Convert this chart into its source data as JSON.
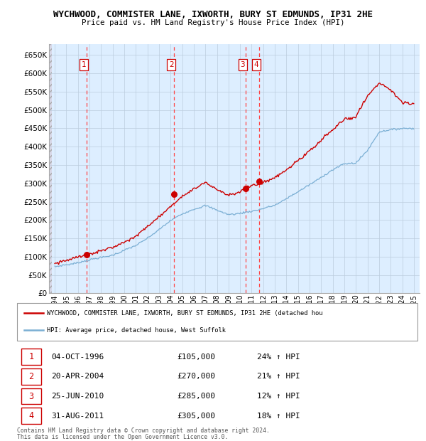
{
  "title1": "WYCHWOOD, COMMISTER LANE, IXWORTH, BURY ST EDMUNDS, IP31 2HE",
  "title2": "Price paid vs. HM Land Registry's House Price Index (HPI)",
  "legend_line1": "WYCHWOOD, COMMISTER LANE, IXWORTH, BURY ST EDMUNDS, IP31 2HE (detached hou",
  "legend_line2": "HPI: Average price, detached house, West Suffolk",
  "footer1": "Contains HM Land Registry data © Crown copyright and database right 2024.",
  "footer2": "This data is licensed under the Open Government Licence v3.0.",
  "transactions": [
    {
      "id": 1,
      "date": "04-OCT-1996",
      "year": 1996.75,
      "price": 105000,
      "pct": "24%",
      "dir": "↑"
    },
    {
      "id": 2,
      "date": "20-APR-2004",
      "year": 2004.3,
      "price": 270000,
      "pct": "21%",
      "dir": "↑"
    },
    {
      "id": 3,
      "date": "25-JUN-2010",
      "year": 2010.48,
      "price": 285000,
      "pct": "12%",
      "dir": "↑"
    },
    {
      "id": 4,
      "date": "31-AUG-2011",
      "year": 2011.66,
      "price": 305000,
      "pct": "18%",
      "dir": "↑"
    }
  ],
  "hpi_color": "#7bafd4",
  "price_color": "#cc0000",
  "dashed_color": "#ff4444",
  "chart_bg": "#ddeeff",
  "hatch_bg": "#d8d8e8",
  "grid_color": "#bbccdd",
  "ylim": [
    0,
    680000
  ],
  "yticks": [
    0,
    50000,
    100000,
    150000,
    200000,
    250000,
    300000,
    350000,
    400000,
    450000,
    500000,
    550000,
    600000,
    650000
  ],
  "xmin": 1993.5,
  "xmax": 2025.5,
  "chart_start": 1993.75
}
